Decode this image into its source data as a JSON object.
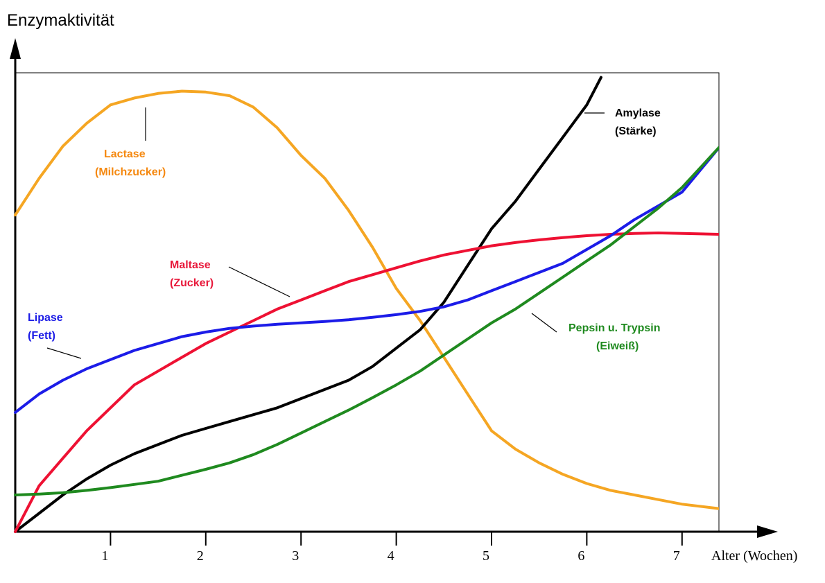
{
  "chart_data": {
    "type": "line",
    "ylabel": "Enzymaktivität",
    "xlabel": "Alter (Wochen)",
    "x_ticks": [
      "1",
      "2",
      "3",
      "4",
      "5",
      "6",
      "7"
    ],
    "xlim": [
      0,
      7.4
    ],
    "ylim": [
      0,
      100
    ],
    "y_ticks_shown": false,
    "grid": false,
    "legend": "none",
    "series": [
      {
        "name": "Lactase",
        "name2": "(Milchzucker)",
        "color": "#f5a623",
        "label_color": "#f5880f",
        "x": [
          0.0,
          0.25,
          0.5,
          0.75,
          1.0,
          1.25,
          1.5,
          1.75,
          2.0,
          2.25,
          2.5,
          2.75,
          3.0,
          3.25,
          3.5,
          3.75,
          4.0,
          4.25,
          4.5,
          4.75,
          5.0,
          5.25,
          5.5,
          5.75,
          6.0,
          6.25,
          6.5,
          6.75,
          7.0,
          7.4
        ],
        "y": [
          69,
          77,
          84,
          89,
          93,
          94.5,
          95.5,
          96,
          95.8,
          95,
          92.5,
          88,
          82,
          77,
          70,
          62,
          53,
          46,
          38,
          30,
          22,
          18,
          15,
          12.5,
          10.5,
          9,
          8,
          7,
          6,
          5
        ]
      },
      {
        "name": "Amylase",
        "name2": "(Stärke)",
        "color": "#000000",
        "label_color": "#000000",
        "x": [
          0.0,
          0.25,
          0.5,
          0.75,
          1.0,
          1.25,
          1.5,
          1.75,
          2.0,
          2.25,
          2.5,
          2.75,
          3.0,
          3.25,
          3.5,
          3.75,
          4.0,
          4.25,
          4.5,
          4.75,
          5.0,
          5.25,
          5.5,
          5.75,
          6.0,
          6.1,
          6.15
        ],
        "y": [
          0,
          4,
          8,
          11.5,
          14.5,
          17,
          19,
          21,
          22.5,
          24,
          25.5,
          27,
          29,
          31,
          33,
          36,
          40,
          44,
          50,
          58,
          66,
          72,
          79,
          86,
          93,
          97,
          99
        ]
      },
      {
        "name": "Maltase",
        "name2": "(Zucker)",
        "color": "#ee1133",
        "label_color": "#e8183a",
        "x": [
          0.0,
          0.25,
          0.5,
          0.75,
          1.0,
          1.25,
          1.5,
          1.75,
          2.0,
          2.25,
          2.5,
          2.75,
          3.0,
          3.25,
          3.5,
          3.75,
          4.0,
          4.25,
          4.5,
          4.75,
          5.0,
          5.25,
          5.5,
          5.75,
          6.0,
          6.25,
          6.5,
          6.75,
          7.0,
          7.4
        ],
        "y": [
          0,
          10,
          16,
          22,
          27,
          32,
          35,
          38,
          41,
          43.5,
          46,
          48.5,
          50.5,
          52.5,
          54.5,
          56,
          57.5,
          59,
          60.3,
          61.3,
          62.3,
          63,
          63.6,
          64.1,
          64.5,
          64.8,
          65,
          65.1,
          65,
          64.8
        ]
      },
      {
        "name": "Lipase",
        "name2": "(Fett)",
        "color": "#1c1ce8",
        "label_color": "#1a1ae6",
        "x": [
          0.0,
          0.25,
          0.5,
          0.75,
          1.0,
          1.25,
          1.5,
          1.75,
          2.0,
          2.25,
          2.5,
          2.75,
          3.0,
          3.25,
          3.5,
          3.75,
          4.0,
          4.25,
          4.5,
          4.75,
          5.0,
          5.25,
          5.5,
          5.75,
          6.0,
          6.25,
          6.5,
          6.75,
          7.0,
          7.4
        ],
        "y": [
          26,
          30,
          33,
          35.5,
          37.5,
          39.5,
          41,
          42.5,
          43.5,
          44.3,
          44.8,
          45.2,
          45.5,
          45.8,
          46.2,
          46.7,
          47.3,
          48,
          49,
          50.5,
          52.5,
          54.5,
          56.5,
          58.5,
          61.5,
          64.5,
          68,
          71,
          74,
          84
        ]
      },
      {
        "name": "Pepsin u. Trypsin",
        "name2": "(Eiweiß)",
        "color": "#1f8a1f",
        "label_color": "#1f8a1f",
        "x": [
          0.0,
          0.25,
          0.5,
          0.75,
          1.0,
          1.25,
          1.5,
          1.75,
          2.0,
          2.25,
          2.5,
          2.75,
          3.0,
          3.25,
          3.5,
          3.75,
          4.0,
          4.25,
          4.5,
          4.75,
          5.0,
          5.25,
          5.5,
          5.75,
          6.0,
          6.25,
          6.5,
          6.75,
          7.0,
          7.4
        ],
        "y": [
          8,
          8.2,
          8.5,
          9,
          9.6,
          10.3,
          11,
          12.3,
          13.6,
          15,
          16.8,
          19,
          21.5,
          24,
          26.5,
          29.2,
          32,
          35,
          38.5,
          42,
          45.5,
          48.5,
          52,
          55.5,
          59,
          62.5,
          66.5,
          70.5,
          75,
          84
        ]
      }
    ]
  }
}
